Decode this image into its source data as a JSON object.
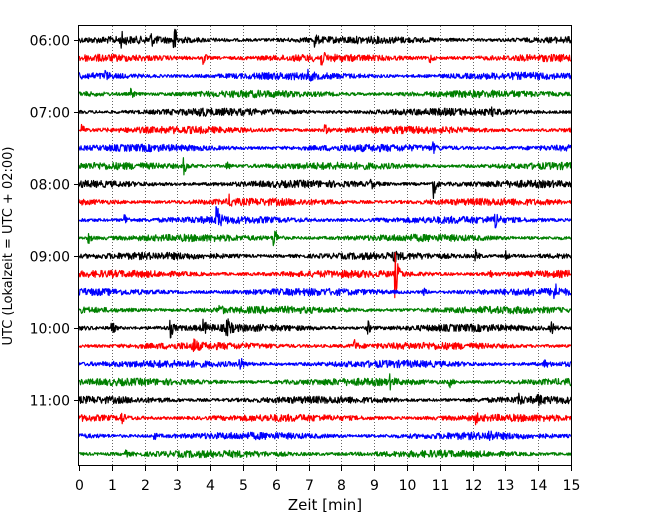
{
  "chart_data": {
    "type": "line",
    "title": "",
    "xlabel": "Zeit  [min]",
    "ylabel": "UTC (Lokalzeit = UTC + 02:00)",
    "xlim": [
      0,
      15
    ],
    "xticks": [
      "0",
      "1",
      "2",
      "3",
      "4",
      "5",
      "6",
      "7",
      "8",
      "9",
      "10",
      "11",
      "12",
      "13",
      "14",
      "15"
    ],
    "yticks": [
      {
        "label": "06:00",
        "row": 0
      },
      {
        "label": "07:00",
        "row": 4
      },
      {
        "label": "08:00",
        "row": 8
      },
      {
        "label": "09:00",
        "row": 12
      },
      {
        "label": "10:00",
        "row": 16
      },
      {
        "label": "11:00",
        "row": 20
      }
    ],
    "grid": "vertical dotted lines at each minute",
    "row_colors": [
      "#000000",
      "#ff0000",
      "#0000ff",
      "#008000"
    ],
    "rows": [
      {
        "start": "06:00",
        "color": "#000000",
        "events": [
          {
            "t": 1.3,
            "amp": 0.4
          },
          {
            "t": 2.2,
            "amp": 0.3
          },
          {
            "t": 2.9,
            "amp": 1.0
          },
          {
            "t": 7.2,
            "amp": 0.35
          }
        ]
      },
      {
        "start": "06:15",
        "color": "#ff0000",
        "events": [
          {
            "t": 3.8,
            "amp": 0.4
          },
          {
            "t": 7.4,
            "amp": 0.35
          },
          {
            "t": 10.7,
            "amp": 0.3
          }
        ]
      },
      {
        "start": "06:30",
        "color": "#0000ff",
        "events": [
          {
            "t": 0.8,
            "amp": 0.25
          },
          {
            "t": 7.0,
            "amp": 0.25
          }
        ]
      },
      {
        "start": "06:45",
        "color": "#008000",
        "events": [
          {
            "t": 1.6,
            "amp": 0.3
          }
        ]
      },
      {
        "start": "07:00",
        "color": "#000000",
        "events": [
          {
            "t": 3.7,
            "amp": 0.3
          },
          {
            "t": 12.6,
            "amp": 0.25
          }
        ]
      },
      {
        "start": "07:15",
        "color": "#ff0000",
        "events": [
          {
            "t": 0.1,
            "amp": 0.3
          },
          {
            "t": 7.5,
            "amp": 0.3
          }
        ]
      },
      {
        "start": "07:30",
        "color": "#0000ff",
        "events": [
          {
            "t": 10.8,
            "amp": 0.25
          }
        ]
      },
      {
        "start": "07:45",
        "color": "#008000",
        "events": [
          {
            "t": 3.2,
            "amp": 0.45
          },
          {
            "t": 4.5,
            "amp": 0.3
          }
        ]
      },
      {
        "start": "08:00",
        "color": "#000000",
        "events": [
          {
            "t": 10.8,
            "amp": 1.0
          },
          {
            "t": 8.9,
            "amp": 0.3
          }
        ]
      },
      {
        "start": "08:15",
        "color": "#ff0000",
        "events": [
          {
            "t": 4.6,
            "amp": 0.3
          }
        ]
      },
      {
        "start": "08:30",
        "color": "#0000ff",
        "events": [
          {
            "t": 1.4,
            "amp": 0.4
          },
          {
            "t": 4.2,
            "amp": 1.0
          },
          {
            "t": 12.7,
            "amp": 0.55
          }
        ]
      },
      {
        "start": "08:45",
        "color": "#008000",
        "events": [
          {
            "t": 5.95,
            "amp": 0.8
          },
          {
            "t": 0.3,
            "amp": 0.3
          }
        ]
      },
      {
        "start": "09:00",
        "color": "#000000",
        "events": [
          {
            "t": 12.1,
            "amp": 0.35
          },
          {
            "t": 9.6,
            "amp": 0.3
          },
          {
            "t": 13.0,
            "amp": 0.3
          }
        ]
      },
      {
        "start": "09:15",
        "color": "#ff0000",
        "events": [
          {
            "t": 9.65,
            "amp": 1.3
          },
          {
            "t": 12.5,
            "amp": 0.3
          }
        ]
      },
      {
        "start": "09:30",
        "color": "#0000ff",
        "events": [
          {
            "t": 14.5,
            "amp": 0.55
          },
          {
            "t": 10.5,
            "amp": 0.25
          }
        ]
      },
      {
        "start": "09:45",
        "color": "#008000",
        "events": [
          {
            "t": 4.3,
            "amp": 0.3
          }
        ]
      },
      {
        "start": "10:00",
        "color": "#000000",
        "events": [
          {
            "t": 1.0,
            "amp": 0.5
          },
          {
            "t": 2.8,
            "amp": 0.5
          },
          {
            "t": 3.8,
            "amp": 0.4
          },
          {
            "t": 4.5,
            "amp": 0.8
          },
          {
            "t": 8.8,
            "amp": 0.5
          },
          {
            "t": 14.4,
            "amp": 0.45
          }
        ]
      },
      {
        "start": "10:15",
        "color": "#ff0000",
        "events": [
          {
            "t": 3.5,
            "amp": 0.45
          },
          {
            "t": 8.4,
            "amp": 0.35
          }
        ]
      },
      {
        "start": "10:30",
        "color": "#0000ff",
        "events": [
          {
            "t": 4.9,
            "amp": 0.55
          },
          {
            "t": 14.2,
            "amp": 0.25
          }
        ]
      },
      {
        "start": "10:45",
        "color": "#008000",
        "events": [
          {
            "t": 9.5,
            "amp": 0.3
          },
          {
            "t": 11.3,
            "amp": 0.3
          }
        ]
      },
      {
        "start": "11:00",
        "color": "#000000",
        "events": [
          {
            "t": 13.4,
            "amp": 0.35
          },
          {
            "t": 14.0,
            "amp": 0.3
          }
        ]
      },
      {
        "start": "11:15",
        "color": "#ff0000",
        "events": [
          {
            "t": 1.3,
            "amp": 0.35
          },
          {
            "t": 12.1,
            "amp": 0.25
          }
        ]
      },
      {
        "start": "11:30",
        "color": "#0000ff",
        "events": [
          {
            "t": 12.5,
            "amp": 0.35
          },
          {
            "t": 2.3,
            "amp": 0.2
          }
        ]
      },
      {
        "start": "11:45",
        "color": "#008000",
        "events": [
          {
            "t": 1.4,
            "amp": 0.25
          }
        ]
      }
    ]
  }
}
